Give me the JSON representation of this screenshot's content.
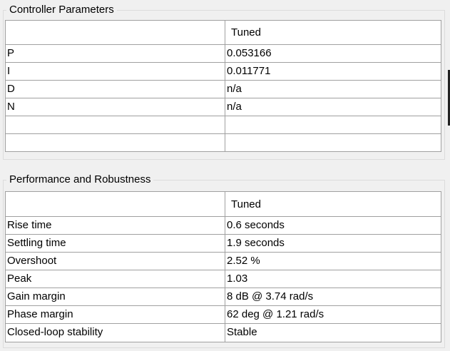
{
  "controller": {
    "title": "Controller Parameters",
    "column_header": "Tuned",
    "rows": [
      {
        "label": "P",
        "value": "0.053166"
      },
      {
        "label": "I",
        "value": "0.011771"
      },
      {
        "label": "D",
        "value": "n/a"
      },
      {
        "label": "N",
        "value": "n/a"
      },
      {
        "label": "",
        "value": ""
      },
      {
        "label": "",
        "value": ""
      }
    ]
  },
  "performance": {
    "title": "Performance and Robustness",
    "column_header": "Tuned",
    "rows": [
      {
        "label": "Rise time",
        "value": "0.6 seconds"
      },
      {
        "label": "Settling time",
        "value": "1.9 seconds"
      },
      {
        "label": "Overshoot",
        "value": "2.52 %"
      },
      {
        "label": "Peak",
        "value": "1.03"
      },
      {
        "label": "Gain margin",
        "value": "8 dB @ 3.74 rad/s"
      },
      {
        "label": "Phase margin",
        "value": "62 deg @ 1.21 rad/s"
      },
      {
        "label": "Closed-loop stability",
        "value": "Stable"
      }
    ]
  }
}
